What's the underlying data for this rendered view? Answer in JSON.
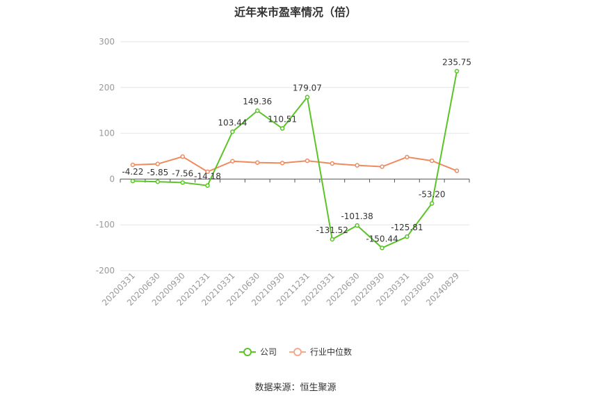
{
  "title": "近年来市盈率情况（倍）",
  "source": "数据来源：恒生聚源",
  "colors": {
    "company": "#5ac426",
    "industry": "#f08a5d",
    "grid": "#e6e6e6",
    "axis": "#999999",
    "label": "#333333"
  },
  "legend": [
    {
      "label": "公司",
      "color": "#5ac426"
    },
    {
      "label": "行业中位数",
      "color": "#f5a88a"
    }
  ],
  "chart_data": {
    "type": "line",
    "title": "近年来市盈率情况（倍）",
    "categories": [
      "20200331",
      "20200630",
      "20200930",
      "20201231",
      "20210331",
      "20210630",
      "20210930",
      "20211231",
      "20220331",
      "20220630",
      "20220930",
      "20230331",
      "20230630",
      "20240829"
    ],
    "ylim": [
      -200,
      300
    ],
    "yticks": [
      300,
      200,
      100,
      0,
      -100,
      -200
    ],
    "grid": true,
    "legend_position": "bottom",
    "series": [
      {
        "name": "公司",
        "values": [
          -4.22,
          -5.85,
          -7.56,
          -14.18,
          103.44,
          149.36,
          110.51,
          179.07,
          -131.52,
          -101.38,
          -150.44,
          -125.81,
          -53.2,
          235.75
        ],
        "labels": [
          "-4.22",
          "-5.85",
          "-7.56",
          "-14.18",
          "103.44",
          "149.36",
          "110.51",
          "179.07",
          "-131.52",
          "-101.38",
          "-150.44",
          "-125.81",
          "-53.20",
          "235.75"
        ]
      },
      {
        "name": "行业中位数",
        "values": [
          31,
          33,
          49,
          16,
          39,
          36,
          35,
          40,
          34,
          30,
          27,
          48,
          40,
          18
        ]
      }
    ]
  }
}
